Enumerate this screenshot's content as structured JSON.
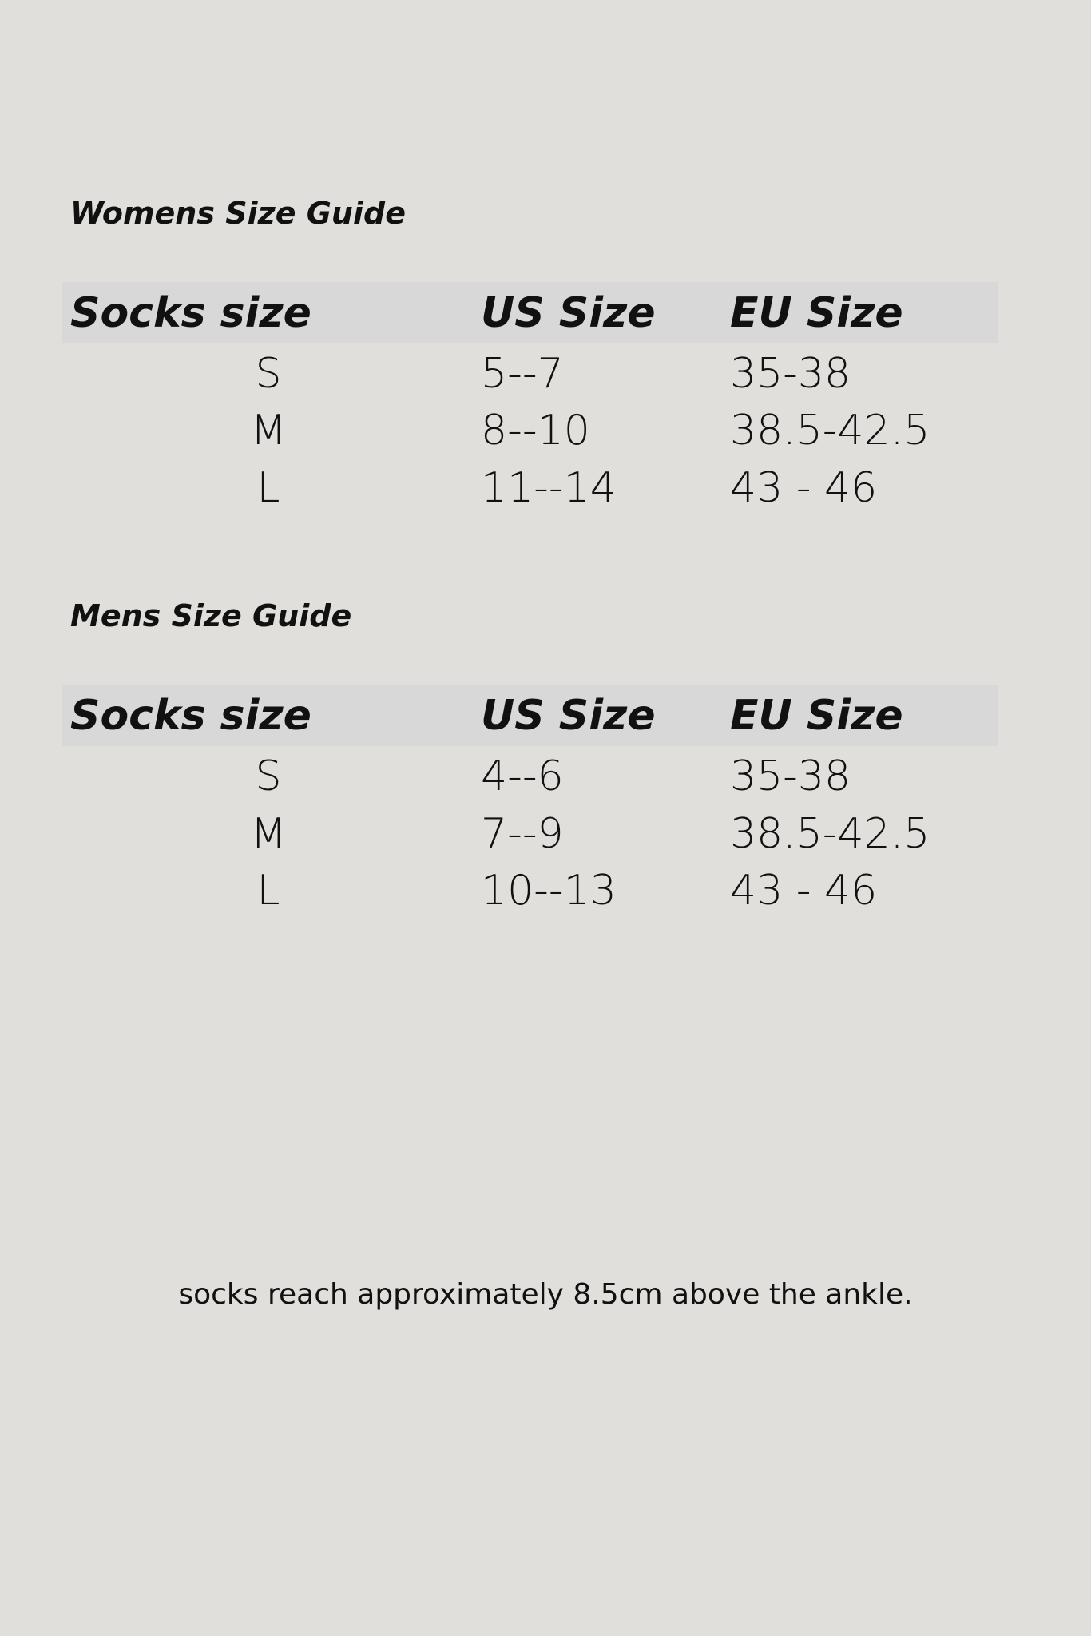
{
  "colors": {
    "background": "#e0dfdb",
    "header_band": "#d8d8d8",
    "text": "#111111"
  },
  "womens": {
    "title": "Womens Size Guide",
    "headers": [
      "Socks size",
      "US Size",
      "EU Size"
    ],
    "rows": [
      [
        "S",
        "5--7",
        "35-38"
      ],
      [
        "M",
        "8--10",
        "38.5-42.5"
      ],
      [
        "L",
        "11--14",
        "43 - 46"
      ]
    ]
  },
  "mens": {
    "title": "Mens Size Guide",
    "headers": [
      "Socks size",
      "US Size",
      "EU Size"
    ],
    "rows": [
      [
        "S",
        "4--6",
        "35-38"
      ],
      [
        "M",
        "7--9",
        "38.5-42.5"
      ],
      [
        "L",
        "10--13",
        "43 - 46"
      ]
    ]
  },
  "footer": "socks reach approximately 8.5cm above the ankle."
}
